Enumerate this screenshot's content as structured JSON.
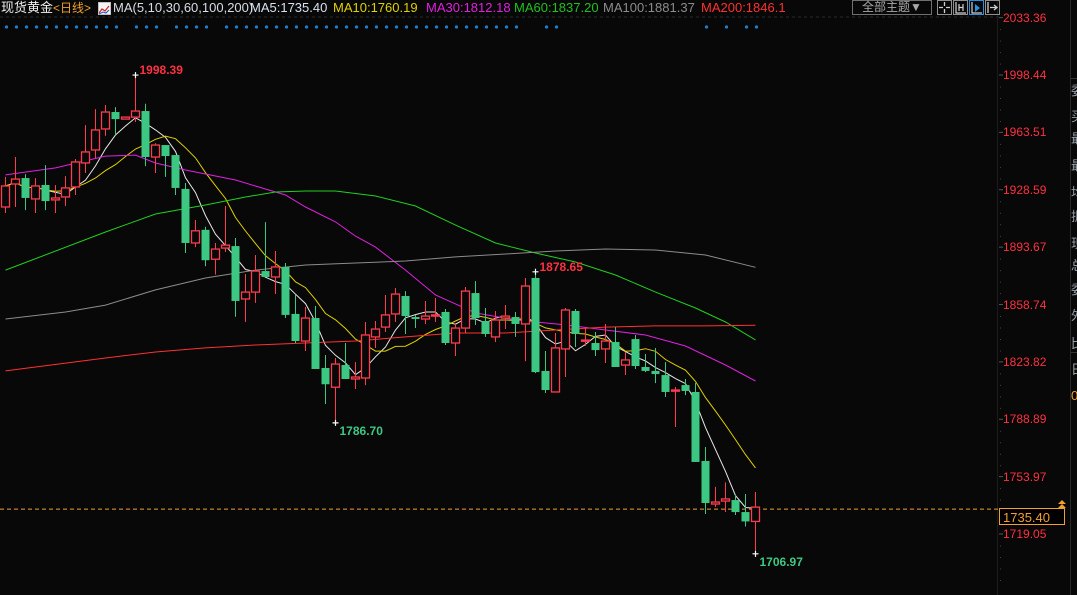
{
  "header": {
    "title": "现货黄金",
    "period": "<日线>",
    "indicator_label": "MA(5,10,30,60,100,200)",
    "ma_values": [
      {
        "label": "MA5:1735.40",
        "color": "#d8e0f0"
      },
      {
        "label": "MA10:1760.19",
        "color": "#e0d000"
      },
      {
        "label": "MA30:1812.18",
        "color": "#e020e0"
      },
      {
        "label": "MA60:1837.20",
        "color": "#20c020"
      },
      {
        "label": "MA100:1881.37",
        "color": "#8c8c8c"
      },
      {
        "label": "MA200:1846.1",
        "color": "#ff3030"
      }
    ],
    "theme_button": "全部主题▼",
    "toolbar_icons": [
      "crosshair-icon",
      "fit-range-icon",
      "play-forward-icon",
      "exit-right-icon"
    ]
  },
  "side_panel": {
    "labels": [
      "委",
      "买",
      "最",
      "最",
      "均",
      "振",
      "现",
      "总",
      "委",
      "外",
      "比",
      "日",
      "0"
    ]
  },
  "chart_data": {
    "type": "candlestick",
    "title": "现货黄金",
    "ylim": [
      1700,
      2044
    ],
    "y_ticks": [
      "2033.36",
      "1998.44",
      "1963.51",
      "1928.59",
      "1893.67",
      "1858.74",
      "1823.82",
      "1788.89",
      "1753.97",
      "1719.05"
    ],
    "colors": {
      "up": "#ff3b4e",
      "down": "#3cc882",
      "last_price": "#f0a030",
      "marker_dots": "#1e7fd0"
    },
    "last_price": "1735.40",
    "annotations": [
      {
        "text": "1998.39",
        "index": 13,
        "price": 1998.39,
        "kind": "high"
      },
      {
        "text": "1878.65",
        "index": 53,
        "price": 1878.65,
        "kind": "high"
      },
      {
        "text": "1786.70",
        "index": 33,
        "price": 1786.7,
        "kind": "low"
      },
      {
        "text": "1706.97",
        "index": 75,
        "price": 1706.97,
        "kind": "low"
      }
    ],
    "marker_dot_indices": [
      0,
      1,
      2,
      3,
      4,
      5,
      6,
      7,
      8,
      9,
      10,
      11,
      13,
      14,
      15,
      17,
      18,
      19,
      20,
      22,
      23,
      24,
      25,
      26,
      27,
      28,
      29,
      30,
      31,
      32,
      33,
      34,
      35,
      36,
      37,
      38,
      39,
      40,
      41,
      42,
      43,
      44,
      45,
      46,
      47,
      48,
      49,
      50,
      51,
      54,
      55,
      70,
      72,
      74,
      75
    ],
    "ohlc": [
      [
        1918.1,
        1936.4,
        1914.4,
        1930.9
      ],
      [
        1932.1,
        1948.5,
        1918.1,
        1935.1
      ],
      [
        1935.7,
        1938.1,
        1916.2,
        1923.6
      ],
      [
        1923.0,
        1935.7,
        1914.4,
        1930.9
      ],
      [
        1931.5,
        1943.6,
        1916.2,
        1921.7
      ],
      [
        1922.4,
        1931.5,
        1914.4,
        1923.6
      ],
      [
        1924.2,
        1936.9,
        1918.7,
        1929.7
      ],
      [
        1930.3,
        1947.3,
        1925.4,
        1945.5
      ],
      [
        1944.9,
        1967.9,
        1938.8,
        1951.6
      ],
      [
        1952.8,
        1977.7,
        1947.9,
        1965.0
      ],
      [
        1965.6,
        1980.2,
        1961.4,
        1975.9
      ],
      [
        1975.9,
        1978.9,
        1962.0,
        1971.6
      ],
      [
        1971.6,
        1972.8,
        1971.6,
        1972.8
      ],
      [
        1972.8,
        1998.39,
        1969.8,
        1976.5
      ],
      [
        1976.5,
        1980.9,
        1943.0,
        1948.5
      ],
      [
        1948.5,
        1957.0,
        1938.8,
        1955.8
      ],
      [
        1955.8,
        1955.8,
        1936.4,
        1949.1
      ],
      [
        1949.7,
        1949.7,
        1925.4,
        1929.7
      ],
      [
        1929.1,
        1932.7,
        1890.1,
        1896.2
      ],
      [
        1896.2,
        1910.2,
        1893.7,
        1903.6
      ],
      [
        1904.2,
        1906.1,
        1882.0,
        1885.7
      ],
      [
        1886.3,
        1896.2,
        1876.9,
        1892.5
      ],
      [
        1893.1,
        1918.7,
        1890.7,
        1894.9
      ],
      [
        1894.3,
        1899.2,
        1851.3,
        1860.9
      ],
      [
        1862.1,
        1877.3,
        1848.2,
        1866.3
      ],
      [
        1866.3,
        1888.9,
        1859.7,
        1879.1
      ],
      [
        1879.1,
        1908.9,
        1876.9,
        1875.5
      ],
      [
        1875.5,
        1891.3,
        1865.1,
        1881.6
      ],
      [
        1881.6,
        1884.0,
        1850.5,
        1852.4
      ],
      [
        1853.0,
        1864.5,
        1835.3,
        1836.5
      ],
      [
        1836.5,
        1857.2,
        1830.4,
        1850.5
      ],
      [
        1850.5,
        1857.8,
        1819.5,
        1819.5
      ],
      [
        1820.1,
        1828.0,
        1798.2,
        1810.2
      ],
      [
        1808.4,
        1826.2,
        1786.7,
        1822.5
      ],
      [
        1821.9,
        1835.3,
        1813.4,
        1813.4
      ],
      [
        1813.4,
        1823.7,
        1807.3,
        1814.6
      ],
      [
        1814.0,
        1848.1,
        1809.7,
        1840.2
      ],
      [
        1839.0,
        1848.7,
        1832.3,
        1843.8
      ],
      [
        1845.0,
        1864.5,
        1842.0,
        1852.4
      ],
      [
        1853.0,
        1868.8,
        1848.1,
        1865.1
      ],
      [
        1863.9,
        1866.9,
        1840.8,
        1851.7
      ],
      [
        1851.1,
        1852.4,
        1844.4,
        1849.9
      ],
      [
        1849.9,
        1860.9,
        1846.9,
        1851.7
      ],
      [
        1851.7,
        1862.7,
        1848.1,
        1852.4
      ],
      [
        1854.2,
        1856.0,
        1834.1,
        1835.3
      ],
      [
        1835.3,
        1847.5,
        1827.4,
        1844.4
      ],
      [
        1844.4,
        1869.4,
        1841.4,
        1866.9
      ],
      [
        1865.7,
        1873.0,
        1846.3,
        1850.5
      ],
      [
        1848.7,
        1856.6,
        1839.0,
        1840.8
      ],
      [
        1839.0,
        1854.8,
        1835.9,
        1849.3
      ],
      [
        1850.5,
        1858.4,
        1843.8,
        1851.7
      ],
      [
        1851.1,
        1854.2,
        1839.0,
        1846.9
      ],
      [
        1846.9,
        1874.9,
        1824.3,
        1870.0
      ],
      [
        1874.9,
        1878.65,
        1817.0,
        1817.6
      ],
      [
        1818.3,
        1830.4,
        1804.9,
        1806.7
      ],
      [
        1805.5,
        1841.4,
        1805.5,
        1832.3
      ],
      [
        1831.7,
        1856.6,
        1814.6,
        1855.4
      ],
      [
        1854.8,
        1856.0,
        1832.9,
        1840.8
      ],
      [
        1836.5,
        1845.0,
        1833.5,
        1837.1
      ],
      [
        1835.3,
        1842.0,
        1827.4,
        1831.0
      ],
      [
        1831.7,
        1846.9,
        1823.1,
        1836.5
      ],
      [
        1835.9,
        1845.0,
        1820.7,
        1820.7
      ],
      [
        1821.9,
        1829.8,
        1815.8,
        1825.0
      ],
      [
        1837.7,
        1840.2,
        1819.5,
        1821.3
      ],
      [
        1820.7,
        1828.6,
        1817.6,
        1818.3
      ],
      [
        1818.3,
        1832.3,
        1810.9,
        1816.4
      ],
      [
        1815.8,
        1823.7,
        1802.4,
        1805.5
      ],
      [
        1806.1,
        1808.5,
        1784.2,
        1806.7
      ],
      [
        1809.7,
        1813.4,
        1803.6,
        1806.1
      ],
      [
        1805.5,
        1811.0,
        1762.9,
        1762.9
      ],
      [
        1763.5,
        1772.0,
        1731.2,
        1737.9
      ],
      [
        1737.3,
        1747.7,
        1735.5,
        1738.5
      ],
      [
        1739.1,
        1750.5,
        1732.4,
        1740.4
      ],
      [
        1739.7,
        1742.8,
        1730.6,
        1732.4
      ],
      [
        1732.4,
        1743.4,
        1723.6,
        1726.7
      ],
      [
        1726.7,
        1744.6,
        1706.97,
        1735.4
      ]
    ],
    "moving_averages": [
      {
        "name": "MA5",
        "period": 5,
        "color": "#e8e8e8"
      },
      {
        "name": "MA10",
        "period": 10,
        "color": "#e0d000"
      },
      {
        "name": "MA30",
        "color": "#e020e0",
        "points": [
          [
            0,
            1937.6
          ],
          [
            5,
            1941.9
          ],
          [
            10,
            1949.1
          ],
          [
            13,
            1949.7
          ],
          [
            15,
            1944.9
          ],
          [
            18,
            1940.6
          ],
          [
            20,
            1938.2
          ],
          [
            23,
            1934.5
          ],
          [
            25,
            1930.9
          ],
          [
            28,
            1925.4
          ],
          [
            30,
            1918.1
          ],
          [
            33,
            1909.0
          ],
          [
            35,
            1900.4
          ],
          [
            37,
            1893.7
          ],
          [
            40,
            1879.7
          ],
          [
            43,
            1864.5
          ],
          [
            47,
            1853.6
          ],
          [
            51,
            1849.3
          ],
          [
            56,
            1846.3
          ],
          [
            60,
            1843.2
          ],
          [
            64,
            1840.2
          ],
          [
            68,
            1833.5
          ],
          [
            72,
            1821.9
          ],
          [
            75,
            1812.18
          ]
        ]
      },
      {
        "name": "MA60",
        "color": "#20d020",
        "points": [
          [
            0,
            1879.7
          ],
          [
            10,
            1902.9
          ],
          [
            15,
            1913.8
          ],
          [
            20,
            1919.3
          ],
          [
            24,
            1924.2
          ],
          [
            27,
            1927.2
          ],
          [
            30,
            1927.8
          ],
          [
            33,
            1927.8
          ],
          [
            37,
            1924.8
          ],
          [
            41,
            1918.7
          ],
          [
            45,
            1907.1
          ],
          [
            49,
            1896.2
          ],
          [
            53,
            1890.1
          ],
          [
            57,
            1884.6
          ],
          [
            61,
            1876.7
          ],
          [
            65,
            1866.3
          ],
          [
            69,
            1856.6
          ],
          [
            72,
            1848.1
          ],
          [
            75,
            1837.2
          ]
        ]
      },
      {
        "name": "MA100",
        "color": "#8c8c8c",
        "points": [
          [
            0,
            1849.9
          ],
          [
            6,
            1854.2
          ],
          [
            10,
            1858.4
          ],
          [
            15,
            1867.6
          ],
          [
            20,
            1874.9
          ],
          [
            25,
            1879.7
          ],
          [
            30,
            1882.8
          ],
          [
            35,
            1884.0
          ],
          [
            40,
            1885.2
          ],
          [
            45,
            1887.7
          ],
          [
            50,
            1889.5
          ],
          [
            55,
            1891.3
          ],
          [
            60,
            1892.5
          ],
          [
            65,
            1891.9
          ],
          [
            70,
            1888.9
          ],
          [
            75,
            1881.37
          ]
        ]
      },
      {
        "name": "MA200",
        "color": "#ff3030",
        "points": [
          [
            0,
            1818.3
          ],
          [
            10,
            1826.2
          ],
          [
            15,
            1829.8
          ],
          [
            20,
            1832.3
          ],
          [
            25,
            1834.1
          ],
          [
            30,
            1835.3
          ],
          [
            35,
            1836.5
          ],
          [
            40,
            1839.0
          ],
          [
            45,
            1841.4
          ],
          [
            50,
            1841.4
          ],
          [
            55,
            1843.2
          ],
          [
            60,
            1845.0
          ],
          [
            65,
            1845.7
          ],
          [
            70,
            1845.7
          ],
          [
            75,
            1846.1
          ]
        ]
      }
    ]
  }
}
